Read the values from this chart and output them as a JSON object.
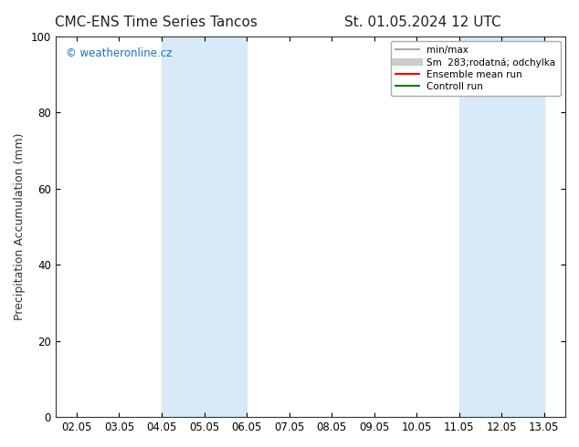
{
  "title_left": "CMC-ENS Time Series Tancos",
  "title_right": "St. 01.05.2024 12 UTC",
  "ylabel": "Precipitation Accumulation (mm)",
  "watermark": "© weatheronline.cz",
  "watermark_color": "#1a6fc4",
  "ylim": [
    0,
    100
  ],
  "yticks": [
    0,
    20,
    40,
    60,
    80,
    100
  ],
  "x_labels": [
    "02.05",
    "03.05",
    "04.05",
    "05.05",
    "06.05",
    "07.05",
    "08.05",
    "09.05",
    "10.05",
    "11.05",
    "12.05",
    "13.05"
  ],
  "x_values": [
    0,
    1,
    2,
    3,
    4,
    5,
    6,
    7,
    8,
    9,
    10,
    11
  ],
  "shaded_regions": [
    {
      "xmin": 2.0,
      "xmax": 4.0,
      "color": "#d8eaf8"
    },
    {
      "xmin": 9.0,
      "xmax": 11.0,
      "color": "#d8eaf8"
    }
  ],
  "legend_entries": [
    {
      "label": "min/max",
      "color": "#aaaaaa",
      "lw": 1.5
    },
    {
      "label": "Sm  283;rodatná; odchylka",
      "color": "#cccccc",
      "lw": 6
    },
    {
      "label": "Ensemble mean run",
      "color": "#ff0000",
      "lw": 1.5
    },
    {
      "label": "Controll run",
      "color": "#008000",
      "lw": 1.5
    }
  ],
  "bg_color": "#ffffff",
  "plot_bg_color": "#ffffff",
  "spine_color": "#333333",
  "title_fontsize": 11,
  "label_fontsize": 9,
  "tick_fontsize": 8.5,
  "legend_fontsize": 7.5,
  "watermark_fontsize": 8.5
}
